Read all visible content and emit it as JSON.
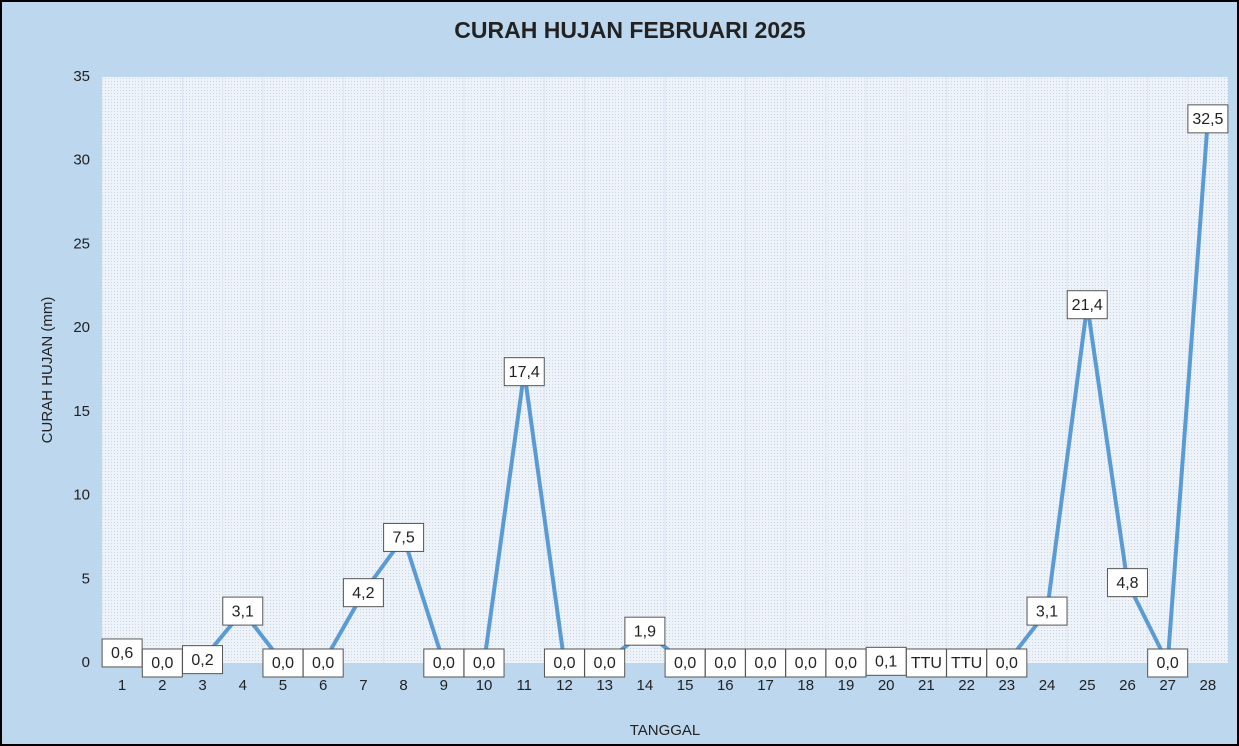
{
  "chart_data": {
    "type": "line",
    "title": "CURAH HUJAN FEBRUARI 2025",
    "x_label": "TANGGAL",
    "y_label": "CURAH HUJAN (mm)",
    "categories": [
      "1",
      "2",
      "3",
      "4",
      "5",
      "6",
      "7",
      "8",
      "9",
      "10",
      "11",
      "12",
      "13",
      "14",
      "15",
      "16",
      "17",
      "18",
      "19",
      "20",
      "21",
      "22",
      "23",
      "24",
      "25",
      "26",
      "27",
      "28"
    ],
    "series": [
      {
        "name": "CURAH HUJAN",
        "color": "#5b9bd5",
        "values": [
          0.6,
          0,
          0.2,
          3.1,
          0,
          0,
          4.2,
          7.5,
          0,
          0,
          17.4,
          0,
          0,
          1.9,
          0,
          0,
          0,
          0,
          0,
          0.1,
          null,
          null,
          0,
          3.1,
          21.4,
          4.8,
          0,
          32.5
        ],
        "value_labels": [
          "0,6",
          "0,0",
          "0,2",
          "3,1",
          "0,0",
          "0,0",
          "4,2",
          "7,5",
          "0,0",
          "0,0",
          "17,4",
          "0,0",
          "0,0",
          "1,9",
          "0,0",
          "0,0",
          "0,0",
          "0,0",
          "0,0",
          "0,1",
          "TTU",
          "TTU",
          "0,0",
          "3,1",
          "21,4",
          "4,8",
          "0,0",
          "32,5"
        ]
      }
    ],
    "ylim": [
      0,
      35
    ],
    "yticks": [
      0,
      5,
      10,
      15,
      20,
      25,
      30,
      35
    ]
  }
}
